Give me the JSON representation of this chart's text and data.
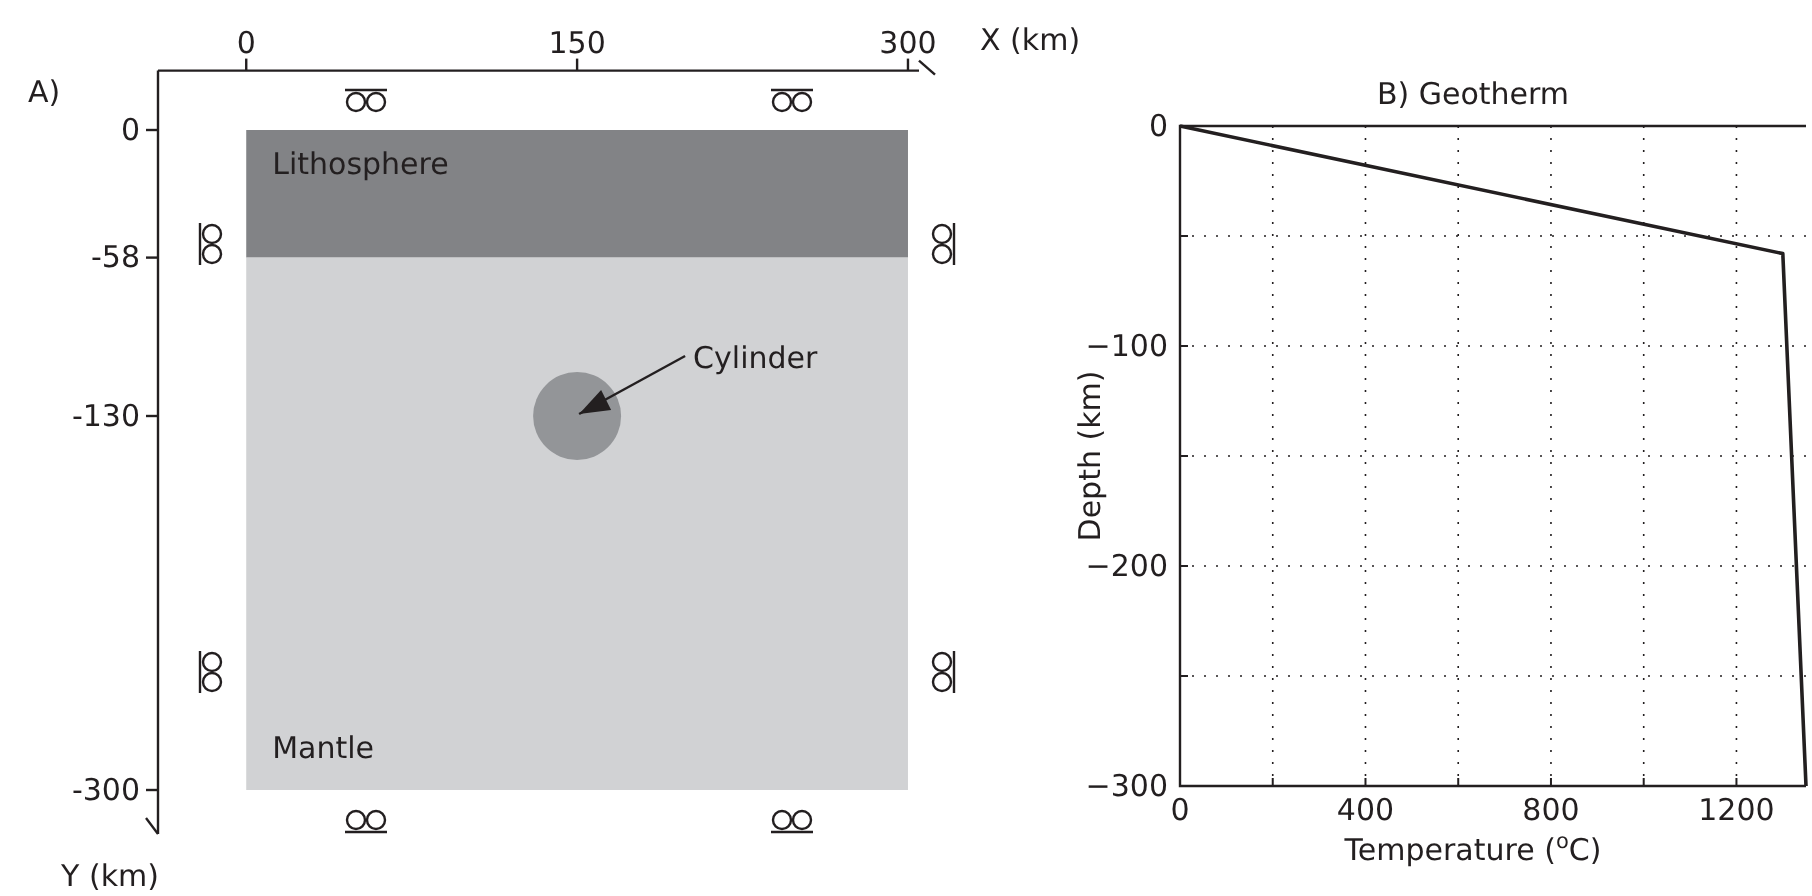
{
  "chart_data": [
    {
      "type": "bubble",
      "title": "A)",
      "x": [
        150
      ],
      "series": [
        {
          "color": "#939598",
          "values": [
            -130
          ],
          "sizes": [
            1
          ]
        }
      ],
      "xlabel": "X (km)",
      "ylabel": "Y (km)",
      "xlim": [
        -40,
        305
      ],
      "ylim": [
        -320,
        27
      ],
      "xticks": [
        0,
        150,
        300
      ],
      "yticks": [
        0,
        -58,
        -130,
        -300
      ],
      "bands": [
        {
          "axis": "y",
          "from": -58,
          "to": 0,
          "label": "Lithosphere",
          "color": "#828386"
        },
        {
          "axis": "y",
          "from": -300,
          "to": -58,
          "label": "Mantle",
          "color": "#d1d2d4"
        }
      ],
      "annotations": [
        {
          "text": "Cylinder",
          "x": 150,
          "y": -130
        }
      ]
    },
    {
      "type": "line",
      "title": "B) Geotherm",
      "xlabel": "Temperature ($^{o}$C)",
      "ylabel": "Depth (km)",
      "xlim": [
        0,
        1350
      ],
      "ylim": [
        -300,
        0
      ],
      "xticks": [
        0,
        {
          "value": 200,
          "label": null
        },
        400,
        {
          "value": 600,
          "label": null
        },
        800,
        {
          "value": 1000,
          "label": null
        },
        1200
      ],
      "yticks": [
        0,
        {
          "value": -50,
          "label": null
        },
        {
          "value": -100,
          "label": "−100"
        },
        {
          "value": -150,
          "label": null
        },
        {
          "value": -200,
          "label": "−200"
        },
        {
          "value": -250,
          "label": null
        },
        {
          "value": -300,
          "label": "−300"
        }
      ],
      "grid": true,
      "series": [
        {
          "color": "#231f20",
          "x": [
            0,
            1300,
            1350
          ],
          "values": [
            0,
            -58,
            -300
          ]
        }
      ]
    }
  ]
}
